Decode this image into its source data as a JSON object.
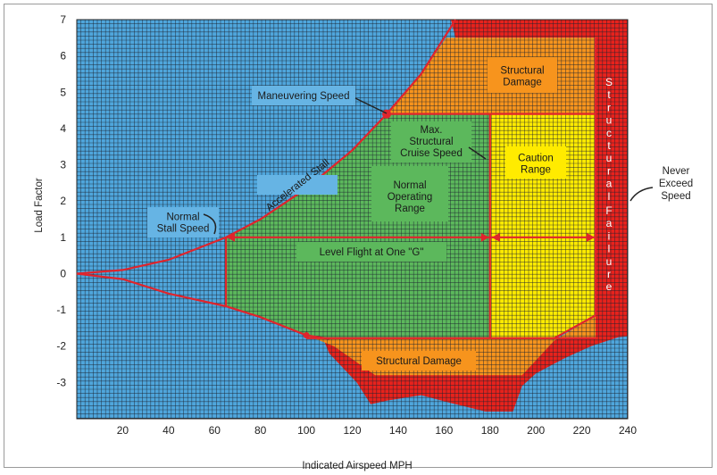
{
  "chart_data": {
    "type": "area",
    "title": "",
    "xlabel": "Indicated Airspeed MPH",
    "ylabel": "Load Factor",
    "xlim": [
      0,
      240
    ],
    "ylim": [
      -4,
      7
    ],
    "x_ticks": [
      "20",
      "40",
      "60",
      "80",
      "100",
      "120",
      "140",
      "160",
      "180",
      "200",
      "220",
      "240"
    ],
    "y_ticks": [
      "7",
      "6",
      "5",
      "4",
      "3",
      "2",
      "1",
      "0",
      "-1",
      "-2",
      "-3"
    ],
    "grid": true,
    "accelerated_stall_positive": [
      [
        0,
        0
      ],
      [
        20,
        0.1
      ],
      [
        40,
        0.38
      ],
      [
        65,
        1.0
      ],
      [
        80,
        1.5
      ],
      [
        100,
        2.35
      ],
      [
        120,
        3.4
      ],
      [
        135,
        4.4
      ],
      [
        150,
        5.5
      ],
      [
        165,
        7
      ]
    ],
    "accelerated_stall_negative": [
      [
        0,
        0
      ],
      [
        20,
        -0.15
      ],
      [
        40,
        -0.55
      ],
      [
        65,
        -0.9
      ],
      [
        80,
        -1.2
      ],
      [
        100,
        -1.7
      ],
      [
        110,
        -1.8
      ]
    ],
    "stall_speed": 65,
    "maneuvering_speed": 135,
    "max_structural_cruise_speed": 180,
    "never_exceed_speed": 225,
    "positive_limit_load": 4.4,
    "negative_limit_load": -1.76,
    "regions": [
      {
        "name": "Normal Operating Range",
        "color": "#5cb85c"
      },
      {
        "name": "Caution Range",
        "color": "#ffeb00"
      },
      {
        "name": "Structural Damage",
        "color": "#f7941d"
      },
      {
        "name": "Structural Failure",
        "color": "#e8221c"
      }
    ],
    "annotations": {
      "maneuvering_speed": "Maneuvering Speed",
      "normal_stall_speed": "Normal\nStall Speed",
      "accelerated_stall": "Accelerated Stall",
      "max_structural_cruise": "Max.\nStructural\nCruise Speed",
      "normal_operating_range": "Normal\nOperating\nRange",
      "caution_range": "Caution\nRange",
      "structural_damage_top": "Structural\nDamage",
      "structural_damage_bottom": "Structural Damage",
      "structural_failure": "Structural Failure",
      "level_flight": "Level Flight at One \"G\"",
      "never_exceed_speed": "Never\nExceed\nSpeed"
    }
  },
  "colors": {
    "sky": "#4fa6dc",
    "grid": "#1d2430",
    "green": "#5cb85c",
    "yellow": "#ffeb00",
    "orange": "#f7941d",
    "red": "#e8221c",
    "line": "#e0242c",
    "label_box": "#66b4e4"
  }
}
